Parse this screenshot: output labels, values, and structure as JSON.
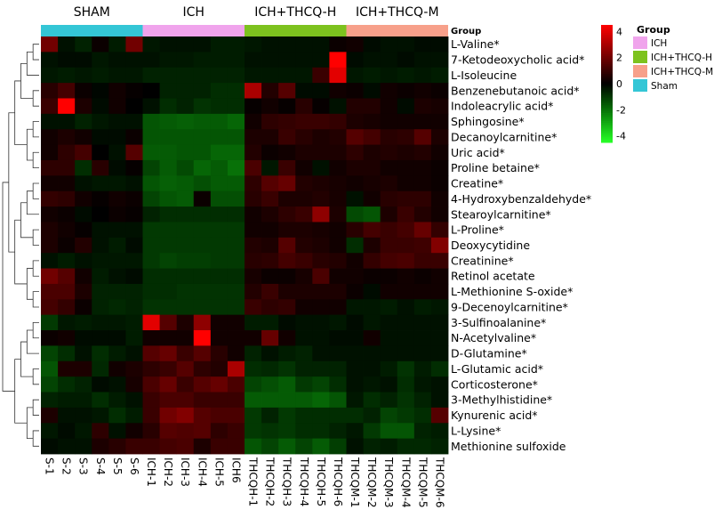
{
  "chart_data": {
    "type": "heatmap",
    "title": "",
    "group_bar_label": "Group",
    "group_headers": [
      "SHAM",
      "ICH",
      "ICH+THCQ-H",
      "ICH+THCQ-M"
    ],
    "group_colors": [
      "#34c6d6",
      "#f0a4ec",
      "#7dc21e",
      "#f7a08a"
    ],
    "legend": {
      "title": "Group",
      "entries": [
        {
          "label": "ICH",
          "color": "#f0a4ec"
        },
        {
          "label": "ICH+THCQ-H",
          "color": "#7dc21e"
        },
        {
          "label": "ICH+THCQ-M",
          "color": "#f7a08a"
        },
        {
          "label": "Sham",
          "color": "#34c6d6"
        }
      ]
    },
    "colorbar": {
      "min": -4.5,
      "max": 4.5,
      "ticks": [
        4,
        2,
        0,
        -2,
        -4
      ]
    },
    "columns": [
      "S-1",
      "S-2",
      "S-3",
      "S-4",
      "S-5",
      "S-6",
      "ICH-1",
      "ICH-2",
      "ICH-3",
      "ICH-4",
      "ICH-5",
      "ICH6",
      "THCQH-1",
      "THCQH-2",
      "THCQH-3",
      "THCQH-4",
      "THCQH-5",
      "THCQH-6",
      "THCQM-1",
      "THCQM-2",
      "THCQM-3",
      "THCQM-4",
      "THCQM-5",
      "THCQM-6"
    ],
    "column_group": [
      0,
      0,
      0,
      0,
      0,
      0,
      1,
      1,
      1,
      1,
      1,
      1,
      2,
      2,
      2,
      2,
      2,
      2,
      3,
      3,
      3,
      3,
      3,
      3
    ],
    "rows": [
      "L-Valine*",
      "7-Ketodeoxycholic acid*",
      "L-Isoleucine",
      "Benzenebutanoic acid*",
      "Indoleacrylic acid*",
      "Sphingosine*",
      "Decanoylcarnitine*",
      "Uric acid*",
      "Proline betaine*",
      "Creatine*",
      "4-Hydroxybenzaldehyde*",
      "Stearoylcarnitine*",
      "L-Proline*",
      "Deoxycytidine",
      "Creatinine*",
      "Retinol acetate",
      "L-Methionine S-oxide*",
      "9-Decenoylcarnitine*",
      "3-Sulfinoalanine*",
      "N-Acetylvaline*",
      "D-Glutamine*",
      "L-Glutamic acid*",
      "Corticosterone*",
      "3-Methylhistidine*",
      "Kynurenic acid*",
      "L-Lysine*",
      "Methionine sulfoxide"
    ],
    "values": [
      [
        2.0,
        -0.3,
        -0.6,
        0.2,
        -0.5,
        2.0,
        -0.4,
        -0.3,
        -0.3,
        -0.3,
        -0.5,
        -0.5,
        -0.4,
        -0.3,
        -0.3,
        -0.3,
        -0.3,
        0.2,
        0.3,
        -0.2,
        -0.3,
        -0.3,
        -0.2,
        -0.2
      ],
      [
        -0.3,
        -0.2,
        -0.2,
        -0.4,
        -0.3,
        -0.3,
        -0.3,
        -0.4,
        -0.4,
        -0.5,
        -0.5,
        -0.5,
        -0.3,
        -0.3,
        -0.3,
        -0.3,
        -0.3,
        4.5,
        -0.2,
        -0.3,
        -0.3,
        -0.2,
        -0.3,
        -0.3
      ],
      [
        -0.4,
        -0.5,
        -0.4,
        -0.5,
        -0.4,
        -0.4,
        -0.6,
        -0.6,
        -0.6,
        -0.6,
        -0.6,
        -0.6,
        -0.4,
        -0.4,
        -0.4,
        -0.4,
        1.0,
        4.0,
        -0.4,
        -0.5,
        -0.4,
        -0.5,
        -0.4,
        -0.5
      ],
      [
        0.7,
        1.2,
        0.2,
        -0.1,
        0.3,
        0.1,
        0.0,
        -0.6,
        -0.6,
        -0.6,
        -0.8,
        -0.8,
        3.0,
        0.6,
        1.5,
        -0.2,
        -0.2,
        0.3,
        0.2,
        -0.2,
        0.3,
        0.2,
        0.3,
        0.2
      ],
      [
        1.0,
        4.5,
        0.5,
        -0.2,
        0.3,
        0.0,
        -0.3,
        -0.8,
        -0.6,
        -0.9,
        -0.8,
        -0.8,
        0.1,
        0.3,
        0.1,
        0.7,
        0.1,
        -0.3,
        0.6,
        0.6,
        0.3,
        -0.2,
        0.5,
        0.4
      ],
      [
        -0.3,
        -0.3,
        -0.6,
        -0.4,
        -0.3,
        -0.3,
        -1.5,
        -1.6,
        -1.7,
        -1.6,
        -1.6,
        -1.8,
        0.3,
        0.8,
        0.9,
        1.0,
        1.0,
        0.9,
        0.5,
        0.4,
        0.3,
        0.3,
        0.3,
        0.3
      ],
      [
        0.3,
        0.5,
        0.3,
        -0.2,
        -0.2,
        0.2,
        -1.5,
        -1.5,
        -1.5,
        -1.5,
        -1.5,
        -1.5,
        0.5,
        0.5,
        1.0,
        0.7,
        0.5,
        0.6,
        1.5,
        1.2,
        0.7,
        0.8,
        1.5,
        0.5
      ],
      [
        0.3,
        0.8,
        1.2,
        0.0,
        -0.3,
        1.5,
        -1.6,
        -1.6,
        -1.5,
        -1.5,
        -1.8,
        -1.8,
        0.6,
        0.2,
        0.3,
        0.5,
        0.5,
        0.5,
        0.8,
        0.5,
        0.6,
        0.5,
        0.6,
        0.3
      ],
      [
        0.8,
        0.8,
        -0.8,
        0.7,
        -0.2,
        0.1,
        -1.2,
        -1.6,
        -1.3,
        -1.8,
        -1.6,
        -2.0,
        1.3,
        -0.4,
        1.0,
        0.3,
        -0.3,
        0.3,
        0.5,
        0.5,
        0.3,
        0.3,
        0.3,
        0.2
      ],
      [
        0.3,
        0.3,
        -0.3,
        -0.4,
        -0.4,
        -0.3,
        -1.5,
        -1.7,
        -1.6,
        -1.4,
        -1.6,
        -1.6,
        0.8,
        1.5,
        1.8,
        0.6,
        0.5,
        0.4,
        0.3,
        0.4,
        0.5,
        0.3,
        0.3,
        0.2
      ],
      [
        0.9,
        0.8,
        0.3,
        0.1,
        0.3,
        0.2,
        -1.2,
        -1.5,
        -1.6,
        0.2,
        -1.4,
        -1.4,
        0.7,
        1.0,
        0.5,
        0.5,
        0.6,
        0.4,
        -0.3,
        0.3,
        0.7,
        0.8,
        0.8,
        0.3
      ],
      [
        0.3,
        0.2,
        -0.2,
        0.0,
        0.2,
        0.1,
        -0.6,
        -0.8,
        -0.8,
        -0.8,
        -0.8,
        -0.8,
        0.3,
        0.5,
        0.8,
        1.0,
        2.5,
        0.5,
        -1.3,
        -1.5,
        0.5,
        1.0,
        0.6,
        0.3
      ],
      [
        0.5,
        0.3,
        0.1,
        -0.3,
        -0.3,
        -0.3,
        -1.0,
        -1.0,
        -1.0,
        -1.0,
        -1.0,
        -1.0,
        0.3,
        0.3,
        0.5,
        0.5,
        0.4,
        0.3,
        0.7,
        1.2,
        1.0,
        1.2,
        1.8,
        0.9
      ],
      [
        0.5,
        0.2,
        0.6,
        -0.3,
        -0.5,
        -0.2,
        -1.0,
        -1.0,
        -1.0,
        -1.0,
        -1.0,
        -1.0,
        0.6,
        0.5,
        1.5,
        0.6,
        0.5,
        0.3,
        -0.8,
        0.5,
        1.0,
        1.0,
        1.1,
        2.3
      ],
      [
        -0.3,
        -0.5,
        -0.3,
        -0.4,
        -0.4,
        -0.4,
        -1.0,
        -1.2,
        -1.1,
        -1.1,
        -1.0,
        -1.0,
        0.7,
        0.8,
        1.2,
        1.0,
        0.7,
        0.6,
        0.3,
        0.9,
        1.2,
        1.3,
        1.0,
        1.0
      ],
      [
        2.0,
        1.5,
        0.3,
        -0.5,
        -0.3,
        -0.2,
        -0.8,
        -0.8,
        -0.8,
        -0.8,
        -0.8,
        -0.8,
        0.4,
        0.2,
        0.2,
        0.4,
        1.3,
        0.3,
        0.3,
        0.2,
        0.2,
        0.3,
        0.2,
        0.3
      ],
      [
        1.3,
        1.3,
        0.5,
        -0.6,
        -0.6,
        -0.6,
        -0.8,
        -0.8,
        -0.9,
        -0.9,
        -0.9,
        -0.9,
        0.6,
        1.0,
        0.5,
        0.5,
        0.5,
        0.5,
        0.2,
        -0.2,
        0.3,
        0.3,
        0.3,
        0.3
      ],
      [
        1.2,
        0.9,
        0.2,
        -0.6,
        -0.7,
        -0.6,
        -0.9,
        -0.9,
        -0.9,
        -0.9,
        -0.9,
        -0.9,
        1.0,
        0.8,
        0.9,
        0.3,
        0.3,
        0.3,
        -0.4,
        -0.4,
        -0.5,
        -0.3,
        -0.5,
        -0.4
      ],
      [
        -1.0,
        -0.4,
        -0.5,
        -0.4,
        -0.4,
        -0.5,
        4.0,
        1.5,
        0.5,
        2.5,
        0.3,
        0.3,
        -0.5,
        -0.5,
        -0.2,
        -0.3,
        -0.3,
        -0.4,
        -0.2,
        -0.4,
        -0.3,
        -0.3,
        -0.3,
        -0.3
      ],
      [
        0.2,
        0.3,
        -0.2,
        -0.2,
        -0.2,
        -0.5,
        0.3,
        0.3,
        0.3,
        4.5,
        0.3,
        0.3,
        0.3,
        1.8,
        0.3,
        -0.3,
        -0.3,
        -0.2,
        -0.2,
        0.3,
        -0.3,
        -0.3,
        -0.3,
        -0.3
      ],
      [
        -1.2,
        -0.8,
        -0.3,
        -0.8,
        -0.5,
        -0.3,
        1.5,
        1.8,
        1.0,
        1.5,
        0.7,
        0.3,
        -0.6,
        -0.3,
        -0.5,
        -0.6,
        -0.3,
        -0.3,
        -0.3,
        -0.3,
        -0.3,
        -0.3,
        -0.3,
        -0.3
      ],
      [
        -1.5,
        0.5,
        0.5,
        -0.7,
        0.3,
        0.5,
        0.8,
        1.0,
        1.5,
        0.8,
        0.6,
        3.0,
        -0.8,
        -0.7,
        -0.9,
        -0.6,
        -0.6,
        -0.6,
        -0.3,
        -0.3,
        -0.5,
        -0.9,
        -0.5,
        -0.8
      ],
      [
        -1.2,
        -0.8,
        -0.6,
        -0.2,
        -0.3,
        0.4,
        1.3,
        1.8,
        1.0,
        1.5,
        1.8,
        1.3,
        -1.2,
        -1.4,
        -1.6,
        -1.0,
        -1.2,
        -0.8,
        -0.3,
        -0.4,
        -0.3,
        -0.8,
        -0.4,
        -0.3
      ],
      [
        -0.6,
        -0.5,
        -0.5,
        -0.8,
        -0.5,
        -0.3,
        1.0,
        1.3,
        1.3,
        1.0,
        1.0,
        1.0,
        -1.6,
        -1.6,
        -1.6,
        -1.6,
        -1.8,
        -1.5,
        -0.4,
        -0.8,
        -0.6,
        -0.9,
        -0.6,
        -0.3
      ],
      [
        0.5,
        -0.3,
        -0.3,
        -0.4,
        -0.8,
        -0.5,
        1.0,
        2.0,
        2.3,
        1.5,
        1.3,
        1.3,
        -1.0,
        -0.6,
        -1.0,
        -0.8,
        -0.8,
        -0.8,
        -0.8,
        -0.6,
        -1.2,
        -1.0,
        -0.8,
        1.5
      ],
      [
        -0.4,
        -0.2,
        -0.4,
        0.8,
        -0.3,
        0.3,
        0.7,
        1.5,
        1.4,
        1.5,
        0.8,
        1.0,
        -1.0,
        -0.9,
        -1.0,
        -0.8,
        -0.8,
        -0.6,
        -0.4,
        -1.0,
        -1.5,
        -1.5,
        -0.6,
        -0.5
      ],
      [
        -0.2,
        -0.3,
        -0.3,
        0.5,
        0.7,
        1.0,
        1.0,
        1.2,
        1.3,
        0.5,
        1.0,
        1.0,
        -1.5,
        -1.2,
        -1.6,
        -1.2,
        -1.6,
        -1.1,
        -0.3,
        -0.6,
        -0.5,
        -0.7,
        -0.7,
        -0.6
      ]
    ]
  }
}
